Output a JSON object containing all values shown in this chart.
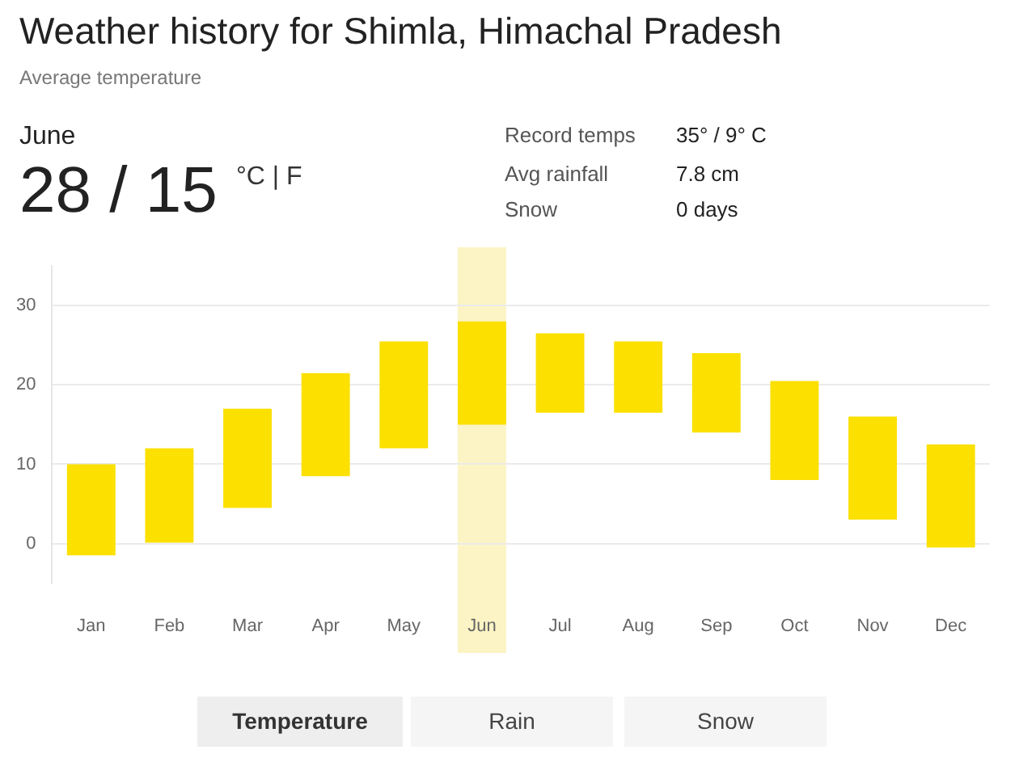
{
  "chart_data": {
    "type": "bar",
    "title": "Weather history for Shimla, Himachal Pradesh",
    "subtitle": "Average temperature",
    "categories": [
      "Jan",
      "Feb",
      "Mar",
      "Apr",
      "May",
      "Jun",
      "Jul",
      "Aug",
      "Sep",
      "Oct",
      "Nov",
      "Dec"
    ],
    "base": [
      -1.5,
      0,
      4.5,
      8.5,
      12,
      15,
      16.5,
      16.5,
      14,
      8,
      3,
      -0.5
    ],
    "values": [
      11.5,
      12,
      12.5,
      13,
      13.5,
      13,
      10,
      9,
      10,
      12.5,
      13,
      13
    ],
    "color": "#fbe000",
    "ylim": [
      -5,
      35
    ],
    "yticks": [
      0,
      10,
      20,
      30
    ],
    "grid": "y",
    "legend": false,
    "bands": [
      {
        "axis": "x",
        "from": "Jun",
        "to": "Jun",
        "color": "#fcf4c4"
      }
    ],
    "annotations": [
      "June",
      "28 / 15",
      "°C | F",
      "Record temps",
      "35° / 9° C",
      "Avg rainfall",
      "7.8 cm",
      "Snow",
      "0 days",
      "Temperature",
      "Rain",
      "Snow"
    ]
  }
}
